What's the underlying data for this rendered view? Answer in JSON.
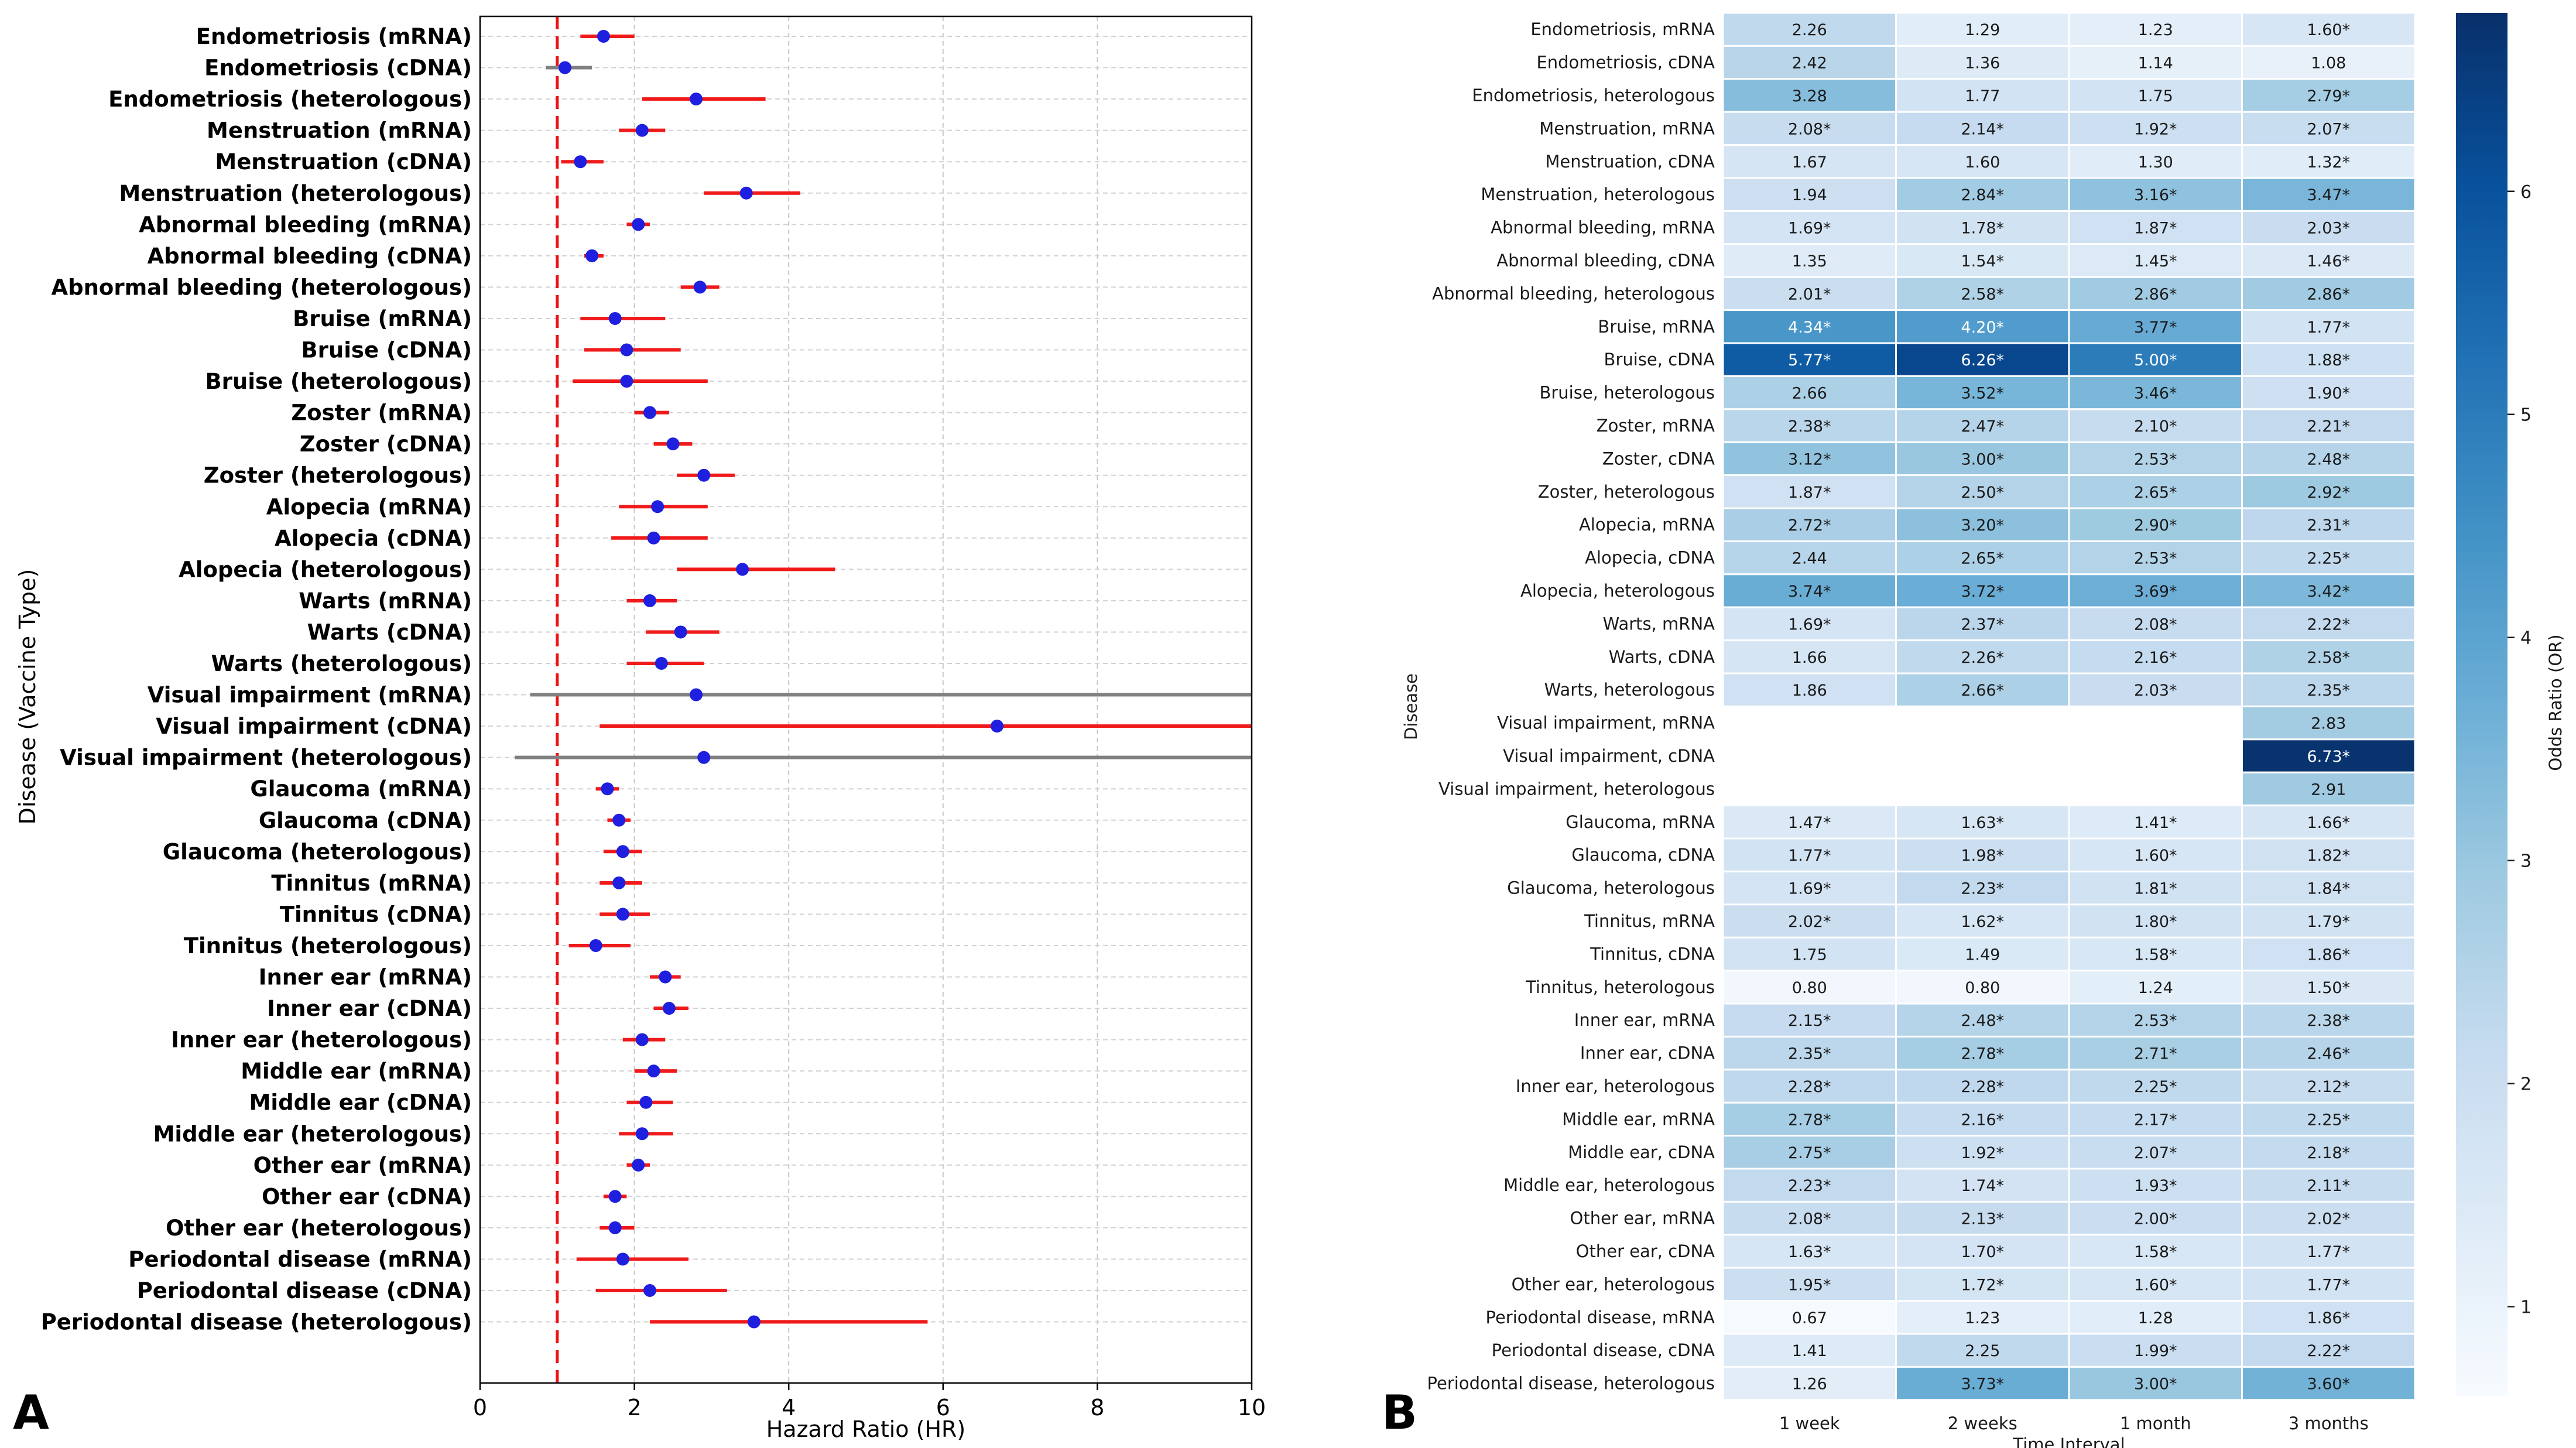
{
  "panel_labels": [
    "A",
    "B"
  ],
  "chart_data": [
    {
      "type": "forest",
      "panel": "A",
      "xlabel": "Hazard Ratio (HR)",
      "ylabel": "Disease (Vaccine Type)",
      "xlim": [
        0,
        10
      ],
      "xticks": [
        "0",
        "2",
        "4",
        "6",
        "8",
        "10"
      ],
      "reference_line": 1,
      "grid": true,
      "rows": [
        {
          "label": "Endometriosis (mRNA)",
          "hr": 1.6,
          "lo": 1.3,
          "hi": 2.0,
          "significant": true
        },
        {
          "label": "Endometriosis (cDNA)",
          "hr": 1.1,
          "lo": 0.85,
          "hi": 1.45,
          "significant": false
        },
        {
          "label": "Endometriosis (heterologous)",
          "hr": 2.8,
          "lo": 2.1,
          "hi": 3.7,
          "significant": true
        },
        {
          "label": "Menstruation (mRNA)",
          "hr": 2.1,
          "lo": 1.8,
          "hi": 2.4,
          "significant": true
        },
        {
          "label": "Menstruation (cDNA)",
          "hr": 1.3,
          "lo": 1.05,
          "hi": 1.6,
          "significant": true
        },
        {
          "label": "Menstruation (heterologous)",
          "hr": 3.45,
          "lo": 2.9,
          "hi": 4.15,
          "significant": true
        },
        {
          "label": "Abnormal bleeding (mRNA)",
          "hr": 2.05,
          "lo": 1.9,
          "hi": 2.2,
          "significant": true
        },
        {
          "label": "Abnormal bleeding (cDNA)",
          "hr": 1.45,
          "lo": 1.35,
          "hi": 1.6,
          "significant": true
        },
        {
          "label": "Abnormal bleeding (heterologous)",
          "hr": 2.85,
          "lo": 2.6,
          "hi": 3.1,
          "significant": true
        },
        {
          "label": "Bruise (mRNA)",
          "hr": 1.75,
          "lo": 1.3,
          "hi": 2.4,
          "significant": true
        },
        {
          "label": "Bruise (cDNA)",
          "hr": 1.9,
          "lo": 1.35,
          "hi": 2.6,
          "significant": true
        },
        {
          "label": "Bruise (heterologous)",
          "hr": 1.9,
          "lo": 1.2,
          "hi": 2.95,
          "significant": true
        },
        {
          "label": "Zoster (mRNA)",
          "hr": 2.2,
          "lo": 2.0,
          "hi": 2.45,
          "significant": true
        },
        {
          "label": "Zoster (cDNA)",
          "hr": 2.5,
          "lo": 2.25,
          "hi": 2.75,
          "significant": true
        },
        {
          "label": "Zoster (heterologous)",
          "hr": 2.9,
          "lo": 2.55,
          "hi": 3.3,
          "significant": true
        },
        {
          "label": "Alopecia (mRNA)",
          "hr": 2.3,
          "lo": 1.8,
          "hi": 2.95,
          "significant": true
        },
        {
          "label": "Alopecia (cDNA)",
          "hr": 2.25,
          "lo": 1.7,
          "hi": 2.95,
          "significant": true
        },
        {
          "label": "Alopecia (heterologous)",
          "hr": 3.4,
          "lo": 2.55,
          "hi": 4.6,
          "significant": true
        },
        {
          "label": "Warts (mRNA)",
          "hr": 2.2,
          "lo": 1.9,
          "hi": 2.55,
          "significant": true
        },
        {
          "label": "Warts (cDNA)",
          "hr": 2.6,
          "lo": 2.15,
          "hi": 3.1,
          "significant": true
        },
        {
          "label": "Warts (heterologous)",
          "hr": 2.35,
          "lo": 1.9,
          "hi": 2.9,
          "significant": true
        },
        {
          "label": "Visual impairment (mRNA)",
          "hr": 2.8,
          "lo": 0.65,
          "hi": 10,
          "significant": false
        },
        {
          "label": "Visual impairment (cDNA)",
          "hr": 6.7,
          "lo": 1.55,
          "hi": 10,
          "significant": true
        },
        {
          "label": "Visual impairment (heterologous)",
          "hr": 2.9,
          "lo": 0.45,
          "hi": 10,
          "significant": false
        },
        {
          "label": "Glaucoma (mRNA)",
          "hr": 1.65,
          "lo": 1.5,
          "hi": 1.8,
          "significant": true
        },
        {
          "label": "Glaucoma (cDNA)",
          "hr": 1.8,
          "lo": 1.65,
          "hi": 1.95,
          "significant": true
        },
        {
          "label": "Glaucoma (heterologous)",
          "hr": 1.85,
          "lo": 1.6,
          "hi": 2.1,
          "significant": true
        },
        {
          "label": "Tinnitus (mRNA)",
          "hr": 1.8,
          "lo": 1.55,
          "hi": 2.1,
          "significant": true
        },
        {
          "label": "Tinnitus (cDNA)",
          "hr": 1.85,
          "lo": 1.55,
          "hi": 2.2,
          "significant": true
        },
        {
          "label": "Tinnitus (heterologous)",
          "hr": 1.5,
          "lo": 1.15,
          "hi": 1.95,
          "significant": true
        },
        {
          "label": "Inner ear (mRNA)",
          "hr": 2.4,
          "lo": 2.2,
          "hi": 2.6,
          "significant": true
        },
        {
          "label": "Inner ear (cDNA)",
          "hr": 2.45,
          "lo": 2.25,
          "hi": 2.7,
          "significant": true
        },
        {
          "label": "Inner ear (heterologous)",
          "hr": 2.1,
          "lo": 1.85,
          "hi": 2.4,
          "significant": true
        },
        {
          "label": "Middle ear (mRNA)",
          "hr": 2.25,
          "lo": 2.0,
          "hi": 2.55,
          "significant": true
        },
        {
          "label": "Middle ear (cDNA)",
          "hr": 2.15,
          "lo": 1.9,
          "hi": 2.5,
          "significant": true
        },
        {
          "label": "Middle ear (heterologous)",
          "hr": 2.1,
          "lo": 1.8,
          "hi": 2.5,
          "significant": true
        },
        {
          "label": "Other ear (mRNA)",
          "hr": 2.05,
          "lo": 1.9,
          "hi": 2.2,
          "significant": true
        },
        {
          "label": "Other ear (cDNA)",
          "hr": 1.75,
          "lo": 1.6,
          "hi": 1.9,
          "significant": true
        },
        {
          "label": "Other ear (heterologous)",
          "hr": 1.75,
          "lo": 1.55,
          "hi": 2.0,
          "significant": true
        },
        {
          "label": "Periodontal disease (mRNA)",
          "hr": 1.85,
          "lo": 1.25,
          "hi": 2.7,
          "significant": true
        },
        {
          "label": "Periodontal disease (cDNA)",
          "hr": 2.2,
          "lo": 1.5,
          "hi": 3.2,
          "significant": true
        },
        {
          "label": "Periodontal disease (heterologous)",
          "hr": 3.55,
          "lo": 2.2,
          "hi": 5.8,
          "significant": true
        }
      ]
    },
    {
      "type": "heatmap",
      "panel": "B",
      "xlabel": "Time Interval",
      "ylabel": "Disease",
      "columns": [
        "1 week",
        "2 weeks",
        "1 month",
        "3 months"
      ],
      "colorbar_label": "Odds Ratio (OR)",
      "colorbar_range": [
        0.6,
        6.8
      ],
      "colorbar_ticks": [
        "1",
        "2",
        "3",
        "4",
        "5",
        "6"
      ],
      "rows": [
        {
          "label": "Endometriosis, mRNA",
          "values": [
            2.26,
            1.29,
            1.23,
            1.6
          ],
          "texts": [
            "2.26",
            "1.29",
            "1.23",
            "1.60*"
          ]
        },
        {
          "label": "Endometriosis, cDNA",
          "values": [
            2.42,
            1.36,
            1.14,
            1.08
          ],
          "texts": [
            "2.42",
            "1.36",
            "1.14",
            "1.08"
          ]
        },
        {
          "label": "Endometriosis, heterologous",
          "values": [
            3.28,
            1.77,
            1.75,
            2.79
          ],
          "texts": [
            "3.28",
            "1.77",
            "1.75",
            "2.79*"
          ]
        },
        {
          "label": "Menstruation, mRNA",
          "values": [
            2.08,
            2.14,
            1.92,
            2.07
          ],
          "texts": [
            "2.08*",
            "2.14*",
            "1.92*",
            "2.07*"
          ]
        },
        {
          "label": "Menstruation, cDNA",
          "values": [
            1.67,
            1.6,
            1.3,
            1.32
          ],
          "texts": [
            "1.67",
            "1.60",
            "1.30",
            "1.32*"
          ]
        },
        {
          "label": "Menstruation, heterologous",
          "values": [
            1.94,
            2.84,
            3.16,
            3.47
          ],
          "texts": [
            "1.94",
            "2.84*",
            "3.16*",
            "3.47*"
          ]
        },
        {
          "label": "Abnormal bleeding, mRNA",
          "values": [
            1.69,
            1.78,
            1.87,
            2.03
          ],
          "texts": [
            "1.69*",
            "1.78*",
            "1.87*",
            "2.03*"
          ]
        },
        {
          "label": "Abnormal bleeding, cDNA",
          "values": [
            1.35,
            1.54,
            1.45,
            1.46
          ],
          "texts": [
            "1.35",
            "1.54*",
            "1.45*",
            "1.46*"
          ]
        },
        {
          "label": "Abnormal bleeding, heterologous",
          "values": [
            2.01,
            2.58,
            2.86,
            2.86
          ],
          "texts": [
            "2.01*",
            "2.58*",
            "2.86*",
            "2.86*"
          ]
        },
        {
          "label": "Bruise, mRNA",
          "values": [
            4.34,
            4.2,
            3.77,
            1.77
          ],
          "texts": [
            "4.34*",
            "4.20*",
            "3.77*",
            "1.77*"
          ]
        },
        {
          "label": "Bruise, cDNA",
          "values": [
            5.77,
            6.26,
            5.0,
            1.88
          ],
          "texts": [
            "5.77*",
            "6.26*",
            "5.00*",
            "1.88*"
          ]
        },
        {
          "label": "Bruise, heterologous",
          "values": [
            2.66,
            3.52,
            3.46,
            1.9
          ],
          "texts": [
            "2.66",
            "3.52*",
            "3.46*",
            "1.90*"
          ]
        },
        {
          "label": "Zoster, mRNA",
          "values": [
            2.38,
            2.47,
            2.1,
            2.21
          ],
          "texts": [
            "2.38*",
            "2.47*",
            "2.10*",
            "2.21*"
          ]
        },
        {
          "label": "Zoster, cDNA",
          "values": [
            3.12,
            3.0,
            2.53,
            2.48
          ],
          "texts": [
            "3.12*",
            "3.00*",
            "2.53*",
            "2.48*"
          ]
        },
        {
          "label": "Zoster, heterologous",
          "values": [
            1.87,
            2.5,
            2.65,
            2.92
          ],
          "texts": [
            "1.87*",
            "2.50*",
            "2.65*",
            "2.92*"
          ]
        },
        {
          "label": "Alopecia, mRNA",
          "values": [
            2.72,
            3.2,
            2.9,
            2.31
          ],
          "texts": [
            "2.72*",
            "3.20*",
            "2.90*",
            "2.31*"
          ]
        },
        {
          "label": "Alopecia, cDNA",
          "values": [
            2.44,
            2.65,
            2.53,
            2.25
          ],
          "texts": [
            "2.44",
            "2.65*",
            "2.53*",
            "2.25*"
          ]
        },
        {
          "label": "Alopecia, heterologous",
          "values": [
            3.74,
            3.72,
            3.69,
            3.42
          ],
          "texts": [
            "3.74*",
            "3.72*",
            "3.69*",
            "3.42*"
          ]
        },
        {
          "label": "Warts, mRNA",
          "values": [
            1.69,
            2.37,
            2.08,
            2.22
          ],
          "texts": [
            "1.69*",
            "2.37*",
            "2.08*",
            "2.22*"
          ]
        },
        {
          "label": "Warts, cDNA",
          "values": [
            1.66,
            2.26,
            2.16,
            2.58
          ],
          "texts": [
            "1.66",
            "2.26*",
            "2.16*",
            "2.58*"
          ]
        },
        {
          "label": "Warts, heterologous",
          "values": [
            1.86,
            2.66,
            2.03,
            2.35
          ],
          "texts": [
            "1.86",
            "2.66*",
            "2.03*",
            "2.35*"
          ]
        },
        {
          "label": "Visual impairment, mRNA",
          "values": [
            null,
            null,
            null,
            2.83
          ],
          "texts": [
            "",
            "",
            "",
            "2.83"
          ]
        },
        {
          "label": "Visual impairment, cDNA",
          "values": [
            null,
            null,
            null,
            6.73
          ],
          "texts": [
            "",
            "",
            "",
            "6.73*"
          ]
        },
        {
          "label": "Visual impairment, heterologous",
          "values": [
            null,
            null,
            null,
            2.91
          ],
          "texts": [
            "",
            "",
            "",
            "2.91"
          ]
        },
        {
          "label": "Glaucoma, mRNA",
          "values": [
            1.47,
            1.63,
            1.41,
            1.66
          ],
          "texts": [
            "1.47*",
            "1.63*",
            "1.41*",
            "1.66*"
          ]
        },
        {
          "label": "Glaucoma, cDNA",
          "values": [
            1.77,
            1.98,
            1.6,
            1.82
          ],
          "texts": [
            "1.77*",
            "1.98*",
            "1.60*",
            "1.82*"
          ]
        },
        {
          "label": "Glaucoma, heterologous",
          "values": [
            1.69,
            2.23,
            1.81,
            1.84
          ],
          "texts": [
            "1.69*",
            "2.23*",
            "1.81*",
            "1.84*"
          ]
        },
        {
          "label": "Tinnitus, mRNA",
          "values": [
            2.02,
            1.62,
            1.8,
            1.79
          ],
          "texts": [
            "2.02*",
            "1.62*",
            "1.80*",
            "1.79*"
          ]
        },
        {
          "label": "Tinnitus, cDNA",
          "values": [
            1.75,
            1.49,
            1.58,
            1.86
          ],
          "texts": [
            "1.75",
            "1.49",
            "1.58*",
            "1.86*"
          ]
        },
        {
          "label": "Tinnitus, heterologous",
          "values": [
            0.8,
            0.8,
            1.24,
            1.5
          ],
          "texts": [
            "0.80",
            "0.80",
            "1.24",
            "1.50*"
          ]
        },
        {
          "label": "Inner ear, mRNA",
          "values": [
            2.15,
            2.48,
            2.53,
            2.38
          ],
          "texts": [
            "2.15*",
            "2.48*",
            "2.53*",
            "2.38*"
          ]
        },
        {
          "label": "Inner ear, cDNA",
          "values": [
            2.35,
            2.78,
            2.71,
            2.46
          ],
          "texts": [
            "2.35*",
            "2.78*",
            "2.71*",
            "2.46*"
          ]
        },
        {
          "label": "Inner ear, heterologous",
          "values": [
            2.28,
            2.28,
            2.25,
            2.12
          ],
          "texts": [
            "2.28*",
            "2.28*",
            "2.25*",
            "2.12*"
          ]
        },
        {
          "label": "Middle ear, mRNA",
          "values": [
            2.78,
            2.16,
            2.17,
            2.25
          ],
          "texts": [
            "2.78*",
            "2.16*",
            "2.17*",
            "2.25*"
          ]
        },
        {
          "label": "Middle ear, cDNA",
          "values": [
            2.75,
            1.92,
            2.07,
            2.18
          ],
          "texts": [
            "2.75*",
            "1.92*",
            "2.07*",
            "2.18*"
          ]
        },
        {
          "label": "Middle ear, heterologous",
          "values": [
            2.23,
            1.74,
            1.93,
            2.11
          ],
          "texts": [
            "2.23*",
            "1.74*",
            "1.93*",
            "2.11*"
          ]
        },
        {
          "label": "Other ear, mRNA",
          "values": [
            2.08,
            2.13,
            2.0,
            2.02
          ],
          "texts": [
            "2.08*",
            "2.13*",
            "2.00*",
            "2.02*"
          ]
        },
        {
          "label": "Other ear, cDNA",
          "values": [
            1.63,
            1.7,
            1.58,
            1.77
          ],
          "texts": [
            "1.63*",
            "1.70*",
            "1.58*",
            "1.77*"
          ]
        },
        {
          "label": "Other ear, heterologous",
          "values": [
            1.95,
            1.72,
            1.6,
            1.77
          ],
          "texts": [
            "1.95*",
            "1.72*",
            "1.60*",
            "1.77*"
          ]
        },
        {
          "label": "Periodontal disease, mRNA",
          "values": [
            0.67,
            1.23,
            1.28,
            1.86
          ],
          "texts": [
            "0.67",
            "1.23",
            "1.28",
            "1.86*"
          ]
        },
        {
          "label": "Periodontal disease, cDNA",
          "values": [
            1.41,
            2.25,
            1.99,
            2.22
          ],
          "texts": [
            "1.41",
            "2.25",
            "1.99*",
            "2.22*"
          ]
        },
        {
          "label": "Periodontal disease, heterologous",
          "values": [
            1.26,
            3.73,
            3.0,
            3.6
          ],
          "texts": [
            "1.26",
            "3.73*",
            "3.00*",
            "3.60*"
          ]
        }
      ]
    }
  ]
}
